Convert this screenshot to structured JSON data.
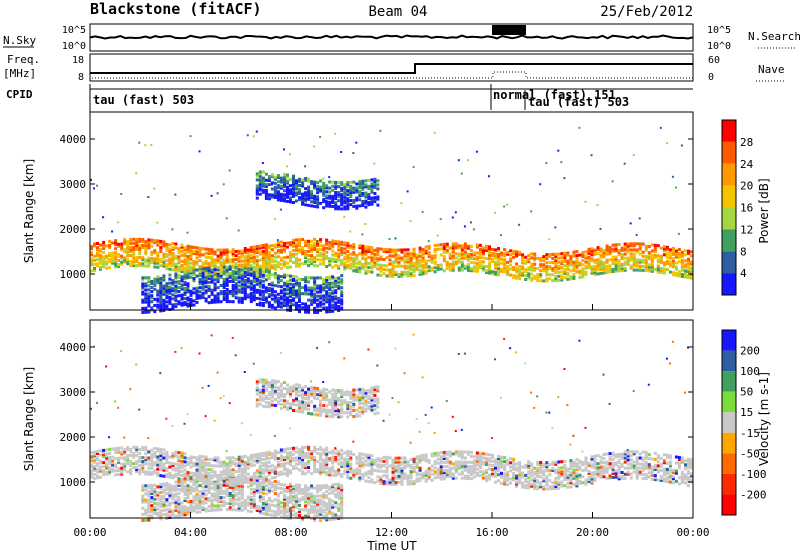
{
  "header": {
    "station": "Blackstone (fitACF)",
    "beam": "Beam 04",
    "date": "25/Feb/2012"
  },
  "top_panels": {
    "nsky_label": "N.Sky",
    "nsearch_label": "N.Search",
    "nsky_ticks": [
      "10^5",
      "10^0"
    ],
    "freq_label": "Freq.",
    "freq_unit": "[MHz]",
    "freq_ticks": [
      "18",
      "8"
    ],
    "nave_label": "Nave",
    "nave_ticks": [
      "60",
      "0"
    ],
    "cpid_label": "CPID",
    "cpid_segments": [
      {
        "label": "tau (fast) 503",
        "start_h": 0,
        "end_h": 16
      },
      {
        "label": "normal (fast) 151",
        "start_h": 16,
        "end_h": 17.3
      },
      {
        "label": "tau (fast) 503",
        "start_h": 17.3,
        "end_h": 24
      }
    ]
  },
  "chart_data": [
    {
      "type": "heatmap",
      "title": "Power",
      "ylabel": "Slant Range [km]",
      "xlabel": "Time UT",
      "ylim": [
        200,
        4600
      ],
      "yticks": [
        "1000",
        "2000",
        "3000",
        "4000"
      ],
      "xticks": [
        "00:00",
        "04:00",
        "08:00",
        "12:00",
        "16:00",
        "20:00",
        "00:00"
      ],
      "colorbar": {
        "label": "Power [dB]",
        "ticks": [
          "28",
          "24",
          "20",
          "16",
          "12",
          "8",
          "4"
        ],
        "colors": [
          "#ff0000",
          "#ff5a00",
          "#ff9900",
          "#f5c400",
          "#a6d640",
          "#3fa060",
          "#2c5ea0",
          "#1616ff"
        ]
      },
      "echo_bands": [
        {
          "name": "ionospheric 1-hop",
          "start_h": 0,
          "end_h": 13,
          "range_km": [
            1100,
            1700
          ]
        },
        {
          "name": "ionospheric 1-hop (evening)",
          "start_h": 13,
          "end_h": 24,
          "range_km": [
            1000,
            1600
          ]
        },
        {
          "name": "2-hop",
          "start_h": 6.5,
          "end_h": 11.5,
          "range_km": [
            2600,
            3200
          ]
        },
        {
          "name": "near range",
          "start_h": 2,
          "end_h": 10,
          "range_km": [
            300,
            1100
          ]
        }
      ]
    },
    {
      "type": "heatmap",
      "title": "Velocity",
      "ylabel": "Slant Range [km]",
      "xlabel": "Time UT",
      "ylim": [
        200,
        4600
      ],
      "yticks": [
        "1000",
        "2000",
        "3000",
        "4000"
      ],
      "xticks": [
        "00:00",
        "04:00",
        "08:00",
        "12:00",
        "16:00",
        "20:00",
        "00:00"
      ],
      "colorbar": {
        "label": "Velocity [m s-1]",
        "ticks": [
          "200",
          "100",
          "50",
          "15",
          "-15",
          "-50",
          "-100",
          "-200"
        ],
        "colors": [
          "#1616ff",
          "#2c5ea0",
          "#3fa060",
          "#7ddc3a",
          "#c8c8c8",
          "#ffa500",
          "#ff6a00",
          "#ff2a00",
          "#ff0000"
        ]
      }
    }
  ],
  "axes": {
    "time_ut_label": "Time UT"
  }
}
